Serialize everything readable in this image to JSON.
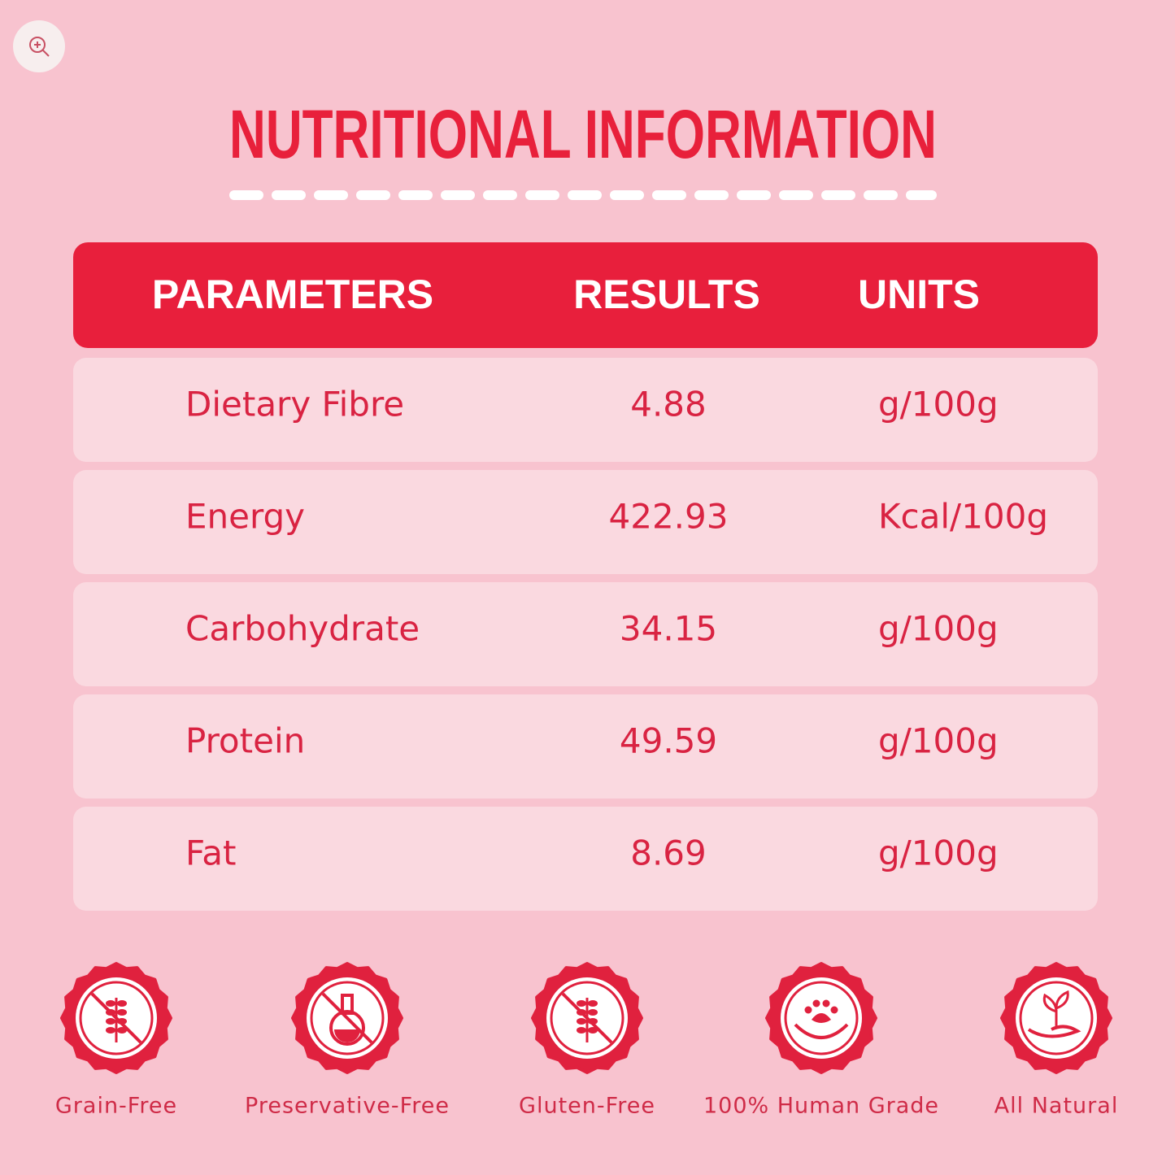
{
  "title": "NUTRITIONAL INFORMATION",
  "table": {
    "header": [
      "PARAMETERS",
      "RESULTS",
      "UNITS"
    ],
    "rows": [
      [
        "Dietary Fibre",
        "4.88",
        "g/100g"
      ],
      [
        "Energy",
        "422.93",
        "Kcal/100g"
      ],
      [
        "Carbohydrate",
        "34.15",
        "g/100g"
      ],
      [
        "Protein",
        "49.59",
        "g/100g"
      ],
      [
        "Fat",
        "8.69",
        "g/100g"
      ]
    ]
  },
  "badges": [
    "Grain-Free",
    "Preservative-Free",
    "Gluten-Free",
    "100% Human Grade",
    "All Natural"
  ]
}
